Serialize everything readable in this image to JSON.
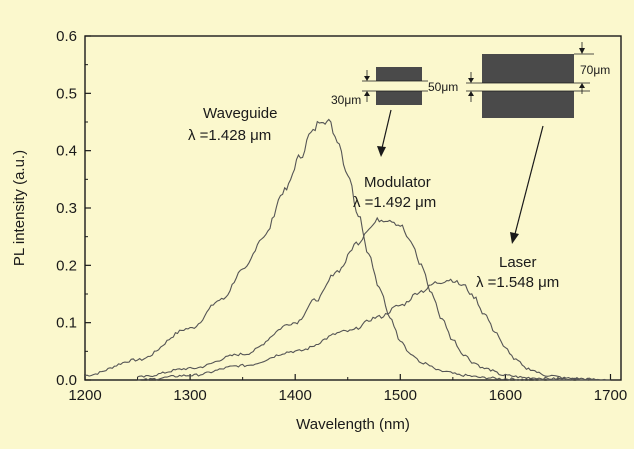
{
  "chart_data": {
    "type": "line",
    "xlabel": "Wavelength (nm)",
    "ylabel": "PL intensity (a.u.)",
    "xlim": [
      1200,
      1710
    ],
    "ylim": [
      0,
      0.6
    ],
    "x_ticks": [
      "1200",
      "1300",
      "1400",
      "1500",
      "1600",
      "1700"
    ],
    "y_ticks": [
      "0.0",
      "0.1",
      "0.2",
      "0.3",
      "0.4",
      "0.5",
      "0.6"
    ],
    "grid": false,
    "colors": {
      "background": "#fbf8cd",
      "curve": "#555555",
      "axis": "#1a1a1a",
      "bar": "#4a4a4a"
    },
    "series": [
      {
        "name": "Waveguide",
        "annotation": "λ =1.428 μm",
        "x": [
          1200,
          1250,
          1300,
          1330,
          1350,
          1370,
          1390,
          1405,
          1415,
          1425,
          1432,
          1440,
          1450,
          1460,
          1470,
          1480,
          1490,
          1500,
          1510,
          1520,
          1540,
          1560,
          1580,
          1600,
          1620,
          1640,
          1700
        ],
        "y": [
          0.008,
          0.035,
          0.09,
          0.14,
          0.19,
          0.25,
          0.33,
          0.39,
          0.43,
          0.455,
          0.45,
          0.42,
          0.36,
          0.29,
          0.22,
          0.16,
          0.11,
          0.07,
          0.045,
          0.03,
          0.015,
          0.008,
          0.004,
          0.002,
          0.001,
          0.0,
          0.0
        ]
      },
      {
        "name": "Modulator",
        "annotation": "λ =1.492 μm",
        "x": [
          1250,
          1300,
          1350,
          1400,
          1420,
          1440,
          1460,
          1470,
          1480,
          1490,
          1500,
          1510,
          1520,
          1530,
          1540,
          1550,
          1560,
          1570,
          1580,
          1600,
          1620,
          1650,
          1700
        ],
        "y": [
          0.005,
          0.02,
          0.045,
          0.1,
          0.14,
          0.19,
          0.24,
          0.265,
          0.28,
          0.28,
          0.27,
          0.24,
          0.2,
          0.15,
          0.105,
          0.07,
          0.045,
          0.03,
          0.02,
          0.008,
          0.004,
          0.002,
          0.0
        ]
      },
      {
        "name": "Laser",
        "annotation": "λ =1.548 μm",
        "x": [
          1250,
          1300,
          1350,
          1400,
          1450,
          1480,
          1500,
          1520,
          1535,
          1548,
          1560,
          1570,
          1580,
          1590,
          1600,
          1610,
          1620,
          1640,
          1660,
          1700
        ],
        "y": [
          0.0,
          0.008,
          0.025,
          0.05,
          0.085,
          0.11,
          0.13,
          0.155,
          0.17,
          0.175,
          0.165,
          0.145,
          0.115,
          0.085,
          0.055,
          0.035,
          0.02,
          0.008,
          0.003,
          0.0
        ]
      }
    ],
    "inset": {
      "labels": [
        "30μm",
        "50μm",
        "70μm"
      ]
    }
  }
}
